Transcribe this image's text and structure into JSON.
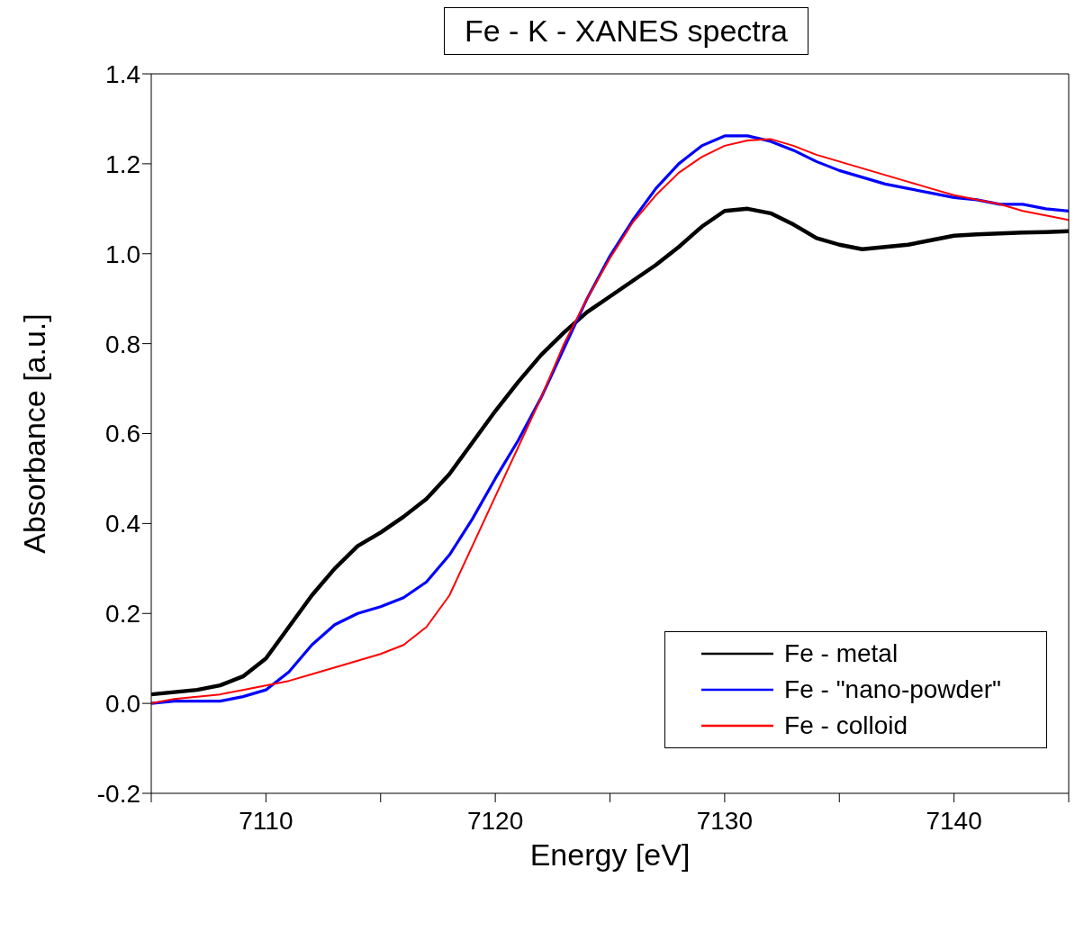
{
  "chart_data": {
    "type": "line",
    "title": "Fe - K - XANES spectra",
    "xlabel": "Energy [eV]",
    "ylabel": "Absorbance [a.u.]",
    "x": [
      7105,
      7106,
      7107,
      7108,
      7109,
      7110,
      7111,
      7112,
      7113,
      7114,
      7115,
      7116,
      7117,
      7118,
      7119,
      7120,
      7121,
      7122,
      7123,
      7124,
      7125,
      7126,
      7127,
      7128,
      7129,
      7130,
      7131,
      7132,
      7133,
      7134,
      7135,
      7136,
      7137,
      7138,
      7139,
      7140,
      7141,
      7142,
      7143,
      7144,
      7145
    ],
    "series": [
      {
        "name": "Fe - metal",
        "color": "#000000",
        "values": [
          0.02,
          0.025,
          0.03,
          0.04,
          0.06,
          0.1,
          0.17,
          0.24,
          0.3,
          0.35,
          0.38,
          0.415,
          0.455,
          0.51,
          0.58,
          0.65,
          0.715,
          0.775,
          0.825,
          0.87,
          0.905,
          0.94,
          0.975,
          1.015,
          1.06,
          1.095,
          1.1,
          1.09,
          1.065,
          1.035,
          1.02,
          1.01,
          1.015,
          1.02,
          1.03,
          1.04,
          1.043,
          1.045,
          1.047,
          1.048,
          1.05
        ]
      },
      {
        "name": "Fe - \"nano-powder\"",
        "color": "#0000ff",
        "values": [
          0.0,
          0.005,
          0.005,
          0.005,
          0.015,
          0.03,
          0.07,
          0.13,
          0.175,
          0.2,
          0.215,
          0.235,
          0.27,
          0.33,
          0.41,
          0.5,
          0.585,
          0.68,
          0.79,
          0.9,
          0.995,
          1.075,
          1.145,
          1.2,
          1.24,
          1.262,
          1.262,
          1.25,
          1.23,
          1.205,
          1.185,
          1.17,
          1.155,
          1.145,
          1.135,
          1.125,
          1.12,
          1.11,
          1.11,
          1.1,
          1.095
        ]
      },
      {
        "name": "Fe - colloid",
        "color": "#ff0000",
        "values": [
          0.0,
          0.01,
          0.015,
          0.02,
          0.03,
          0.04,
          0.05,
          0.065,
          0.08,
          0.095,
          0.11,
          0.13,
          0.17,
          0.24,
          0.35,
          0.46,
          0.57,
          0.68,
          0.8,
          0.9,
          0.99,
          1.07,
          1.13,
          1.18,
          1.215,
          1.24,
          1.252,
          1.255,
          1.24,
          1.22,
          1.205,
          1.19,
          1.175,
          1.16,
          1.145,
          1.13,
          1.12,
          1.11,
          1.095,
          1.085,
          1.075
        ]
      }
    ],
    "xlim": [
      7105,
      7145
    ],
    "xticks": [
      {
        "value": 7105,
        "label": null
      },
      7110,
      {
        "value": 7115,
        "label": null
      },
      7120,
      {
        "value": 7125,
        "label": null
      },
      7130,
      {
        "value": 7135,
        "label": null
      },
      7140,
      {
        "value": 7145,
        "label": null
      }
    ],
    "ylim": [
      -0.2,
      1.4
    ],
    "yticks": [
      {
        "value": -0.2,
        "label": "-0.2"
      },
      {
        "value": 0,
        "label": "0.0"
      },
      {
        "value": 0.2,
        "label": "0.2"
      },
      {
        "value": 0.4,
        "label": "0.4"
      },
      {
        "value": 0.6,
        "label": "0.6"
      },
      {
        "value": 0.8,
        "label": "0.8"
      },
      {
        "value": 1,
        "label": "1.0"
      },
      {
        "value": 1.2,
        "label": "1.2"
      },
      {
        "value": 1.4,
        "label": "1.4"
      }
    ],
    "grid": false,
    "legend": "bottom right",
    "marker": "none",
    "line_style": "solid"
  }
}
